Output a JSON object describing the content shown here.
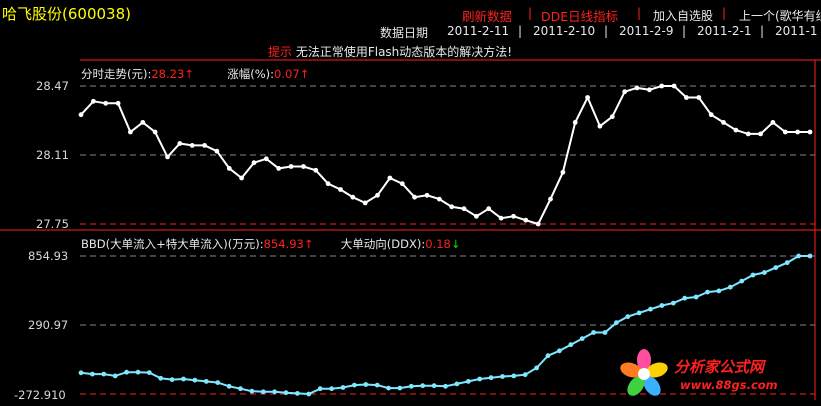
{
  "header": {
    "stock_name": "哈飞股份",
    "stock_code": "(600038)",
    "refresh": "刷新数据",
    "sep1": "|",
    "dde_chart": "DDE日线指标",
    "sep2": "|",
    "add_watch": "加入自选股",
    "sep3": "|",
    "prev": "上一个(歌华有线)"
  },
  "date_bar": {
    "label": "数据日期",
    "dates": [
      "2011-2-11",
      "2011-2-10",
      "2011-2-9",
      "2011-2-1",
      "2011-1"
    ],
    "sep": "|"
  },
  "notice": {
    "hint": "提示",
    "message": "无法正常使用Flash动态版本的解决方法!"
  },
  "price_panel": {
    "legend_label": "分时走势(元):",
    "legend_value": "28.23",
    "legend_arrow": "↑",
    "change_label": "涨幅(%):",
    "change_value": "0.07",
    "change_arrow": "↑",
    "y_ticks": [
      "28.47",
      "28.11",
      "27.75"
    ]
  },
  "bbd_panel": {
    "legend_label": "BBD(大单流入+特大单流入)(万元):",
    "legend_value": "854.93",
    "legend_arrow": "↑",
    "ddx_label": "大单动向(DDX):",
    "ddx_value": "0.18",
    "ddx_arrow": "↓",
    "y_ticks": [
      "854.93",
      "290.97",
      "-272.910"
    ]
  },
  "watermark": {
    "text": "分析家公式网",
    "url": "www.88gs.com"
  },
  "colors": {
    "price_line": "#ffffff",
    "bbd_line": "#7fe8ff",
    "grid": "#8a8a8a",
    "red": "#ff2020"
  },
  "chart_data": [
    {
      "type": "line",
      "series": [
        {
          "values": [
            28.32,
            28.39,
            28.38,
            28.38,
            28.23,
            28.28,
            28.23,
            28.1,
            28.17,
            28.16,
            28.16,
            28.13,
            28.04,
            27.99,
            28.07,
            28.09,
            28.04,
            28.05,
            28.05,
            28.03,
            27.96,
            27.93,
            27.89,
            27.86,
            27.9,
            27.99,
            27.96,
            27.89,
            27.9,
            27.88,
            27.84,
            27.83,
            27.79,
            27.83,
            27.78,
            27.79,
            27.77,
            27.75,
            27.88,
            28.02,
            28.28,
            28.41,
            28.26,
            28.31,
            28.44,
            28.46,
            28.45,
            28.47,
            28.47,
            28.41,
            28.41,
            28.32,
            28.28,
            28.24,
            28.22,
            28.22,
            28.28,
            28.23,
            28.23,
            28.23
          ]
        }
      ],
      "y_ticks": [
        28.47,
        28.11,
        27.75
      ],
      "ylim": [
        27.75,
        28.47
      ]
    },
    {
      "type": "line",
      "series": [
        {
          "values": [
            -100,
            -110,
            -110,
            -125,
            -95,
            -95,
            -98,
            -145,
            -155,
            -150,
            -160,
            -170,
            -180,
            -210,
            -230,
            -250,
            -255,
            -255,
            -262,
            -268,
            -272.91,
            -230,
            -230,
            -220,
            -200,
            -195,
            -200,
            -225,
            -225,
            -210,
            -205,
            -205,
            -210,
            -190,
            -170,
            -150,
            -140,
            -130,
            -125,
            -115,
            -60,
            40,
            80,
            130,
            180,
            230,
            230,
            310,
            360,
            390,
            420,
            450,
            470,
            510,
            520,
            560,
            570,
            600,
            650,
            700,
            720,
            760,
            800,
            854.93,
            854.93
          ]
        }
      ],
      "y_ticks": [
        854.93,
        290.97,
        -272.91
      ],
      "ylim": [
        -272.91,
        854.93
      ]
    }
  ]
}
